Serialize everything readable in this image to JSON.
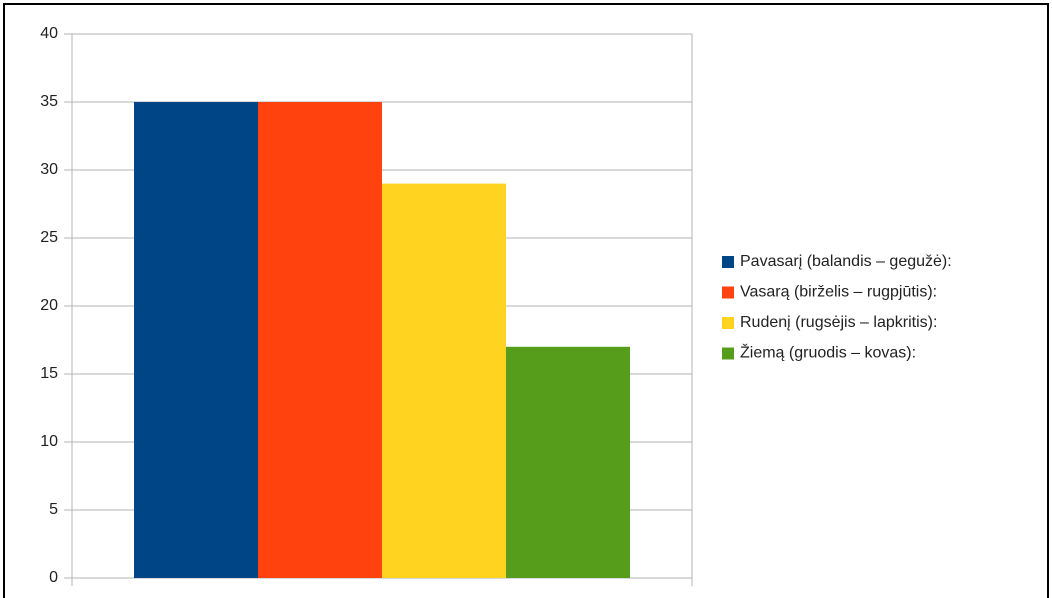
{
  "chart_data": {
    "type": "bar",
    "categories": [
      null
    ],
    "series": [
      {
        "name": "Pavasarį (balandis – gegužė):",
        "color": "#004586",
        "values": [
          35
        ]
      },
      {
        "name": "Vasarą (birželis – rugpjūtis):",
        "color": "#ff420e",
        "values": [
          35
        ]
      },
      {
        "name": "Rudenį (rugsėjis – lapkritis):",
        "color": "#ffd320",
        "values": [
          29
        ]
      },
      {
        "name": "Žiemą (gruodis – kovas):",
        "color": "#579d1c",
        "values": [
          17
        ]
      }
    ],
    "ylim": [
      0,
      40
    ],
    "yticks": [
      0,
      5,
      10,
      15,
      20,
      25,
      30,
      35,
      40
    ],
    "grid": true,
    "legend": "right"
  }
}
